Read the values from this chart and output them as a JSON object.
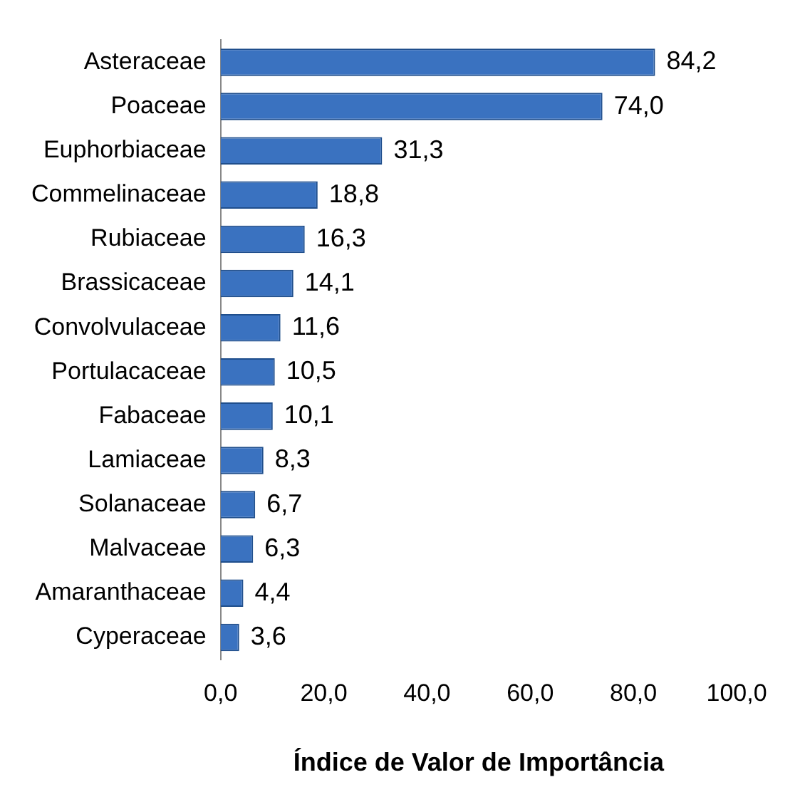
{
  "chart_data": {
    "type": "bar",
    "orientation": "horizontal",
    "xlabel": "Índice de Valor de Importância",
    "categories": [
      "Asteraceae",
      "Poaceae",
      "Euphorbiaceae",
      "Commelinaceae",
      "Rubiaceae",
      "Brassicaceae",
      "Convolvulaceae",
      "Portulacaceae",
      "Fabaceae",
      "Lamiaceae",
      "Solanaceae",
      "Malvaceae",
      "Amaranthaceae",
      "Cyperaceae"
    ],
    "values": [
      84.2,
      74.0,
      31.3,
      18.8,
      16.3,
      14.1,
      11.6,
      10.5,
      10.1,
      8.3,
      6.7,
      6.3,
      4.4,
      3.6
    ],
    "value_labels": [
      "84,2",
      "74,0",
      "31,3",
      "18,8",
      "16,3",
      "14,1",
      "11,6",
      "10,5",
      "10,1",
      "8,3",
      "6,7",
      "6,3",
      "4,4",
      "3,6"
    ],
    "color": "#3a72c0",
    "xlim": [
      0,
      100
    ],
    "xticks": [
      {
        "value": 0,
        "label": "0,0"
      },
      {
        "value": 20,
        "label": "20,0"
      },
      {
        "value": 40,
        "label": "40,0"
      },
      {
        "value": 60,
        "label": "60,0"
      },
      {
        "value": 80,
        "label": "80,0"
      },
      {
        "value": 100,
        "label": "100,0"
      }
    ],
    "grid": false,
    "legend": false
  }
}
